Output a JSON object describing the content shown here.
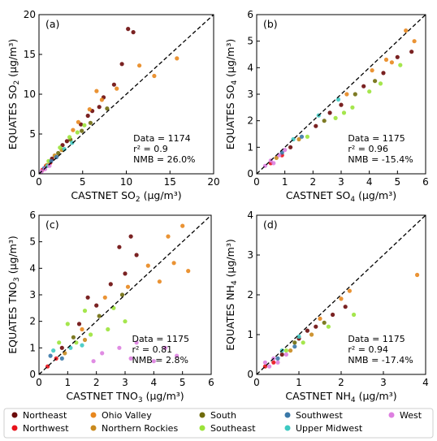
{
  "legend": {
    "regions": [
      {
        "name": "Northeast",
        "color": "#6b0a0a"
      },
      {
        "name": "Northwest",
        "color": "#e8121b"
      },
      {
        "name": "Ohio Valley",
        "color": "#e8871e"
      },
      {
        "name": "Northern Rockies",
        "color": "#c98a1e"
      },
      {
        "name": "South",
        "color": "#6f6b0c"
      },
      {
        "name": "Southeast",
        "color": "#9be33a"
      },
      {
        "name": "Southwest",
        "color": "#3a78a8"
      },
      {
        "name": "Upper Midwest",
        "color": "#3ec9c2"
      },
      {
        "name": "West",
        "color": "#dd7fe0"
      }
    ]
  },
  "chart_data": [
    {
      "type": "scatter",
      "panel": "(a)",
      "xlabel": "CASTNET SO",
      "xsub": "2",
      "ylabel": "EQUATES SO",
      "ysub": "2",
      "unit": "(μg/m³)",
      "xlim": [
        0,
        20
      ],
      "ylim": [
        0,
        20
      ],
      "xticks": [
        "0",
        "5",
        "10",
        "15",
        "20"
      ],
      "yticks": [
        "0",
        "5",
        "10",
        "15",
        "20"
      ],
      "stats": [
        "Data = 1174",
        "r² = 0.9",
        "NMB = 26.0%"
      ],
      "one_to_one_line": true,
      "series": [
        {
          "name": "Northeast",
          "points": [
            [
              1.5,
              1.9
            ],
            [
              3.2,
              4.1
            ],
            [
              4.8,
              6.2
            ],
            [
              6.1,
              7.9
            ],
            [
              7.4,
              9.6
            ],
            [
              8.6,
              11.2
            ],
            [
              9.5,
              13.8
            ],
            [
              10.2,
              18.2
            ],
            [
              10.8,
              17.8
            ],
            [
              5.6,
              7.3
            ],
            [
              2.7,
              3.6
            ],
            [
              6.9,
              8.4
            ]
          ]
        },
        {
          "name": "Northwest",
          "points": [
            [
              0.4,
              0.5
            ],
            [
              0.8,
              1.0
            ],
            [
              1.3,
              1.4
            ]
          ]
        },
        {
          "name": "Ohio Valley",
          "points": [
            [
              4.5,
              6.5
            ],
            [
              5.8,
              8.1
            ],
            [
              7.2,
              9.3
            ],
            [
              8.9,
              10.7
            ],
            [
              11.5,
              13.6
            ],
            [
              13.2,
              12.3
            ],
            [
              15.8,
              14.5
            ],
            [
              6.6,
              10.4
            ],
            [
              3.9,
              5.5
            ]
          ]
        },
        {
          "name": "Northern Rockies",
          "points": [
            [
              0.9,
              1.1
            ],
            [
              1.8,
              2.3
            ],
            [
              2.6,
              3.0
            ]
          ]
        },
        {
          "name": "South",
          "points": [
            [
              2.2,
              2.6
            ],
            [
              3.6,
              4.3
            ],
            [
              4.9,
              5.4
            ],
            [
              5.9,
              6.4
            ],
            [
              7.8,
              8.2
            ]
          ]
        },
        {
          "name": "Southeast",
          "points": [
            [
              1.1,
              1.6
            ],
            [
              2.4,
              3.3
            ],
            [
              3.5,
              4.6
            ],
            [
              4.4,
              5.2
            ],
            [
              5.2,
              6.1
            ]
          ]
        },
        {
          "name": "Southwest",
          "points": [
            [
              0.6,
              0.7
            ],
            [
              1.4,
              1.6
            ],
            [
              2.0,
              2.1
            ]
          ]
        },
        {
          "name": "Upper Midwest",
          "points": [
            [
              1.0,
              1.0
            ],
            [
              2.9,
              3.1
            ],
            [
              3.8,
              3.9
            ]
          ]
        },
        {
          "name": "West",
          "points": [
            [
              0.3,
              0.3
            ],
            [
              0.7,
              0.6
            ],
            [
              1.2,
              1.0
            ]
          ]
        }
      ]
    },
    {
      "type": "scatter",
      "panel": "(b)",
      "xlabel": "CASTNET SO",
      "xsub": "4",
      "ylabel": "EQUATES SO",
      "ysub": "4",
      "unit": "(μg/m³)",
      "xlim": [
        0,
        6
      ],
      "ylim": [
        0,
        6
      ],
      "xticks": [
        "0",
        "1",
        "2",
        "3",
        "4",
        "5",
        "6"
      ],
      "yticks": [
        "0",
        "1",
        "2",
        "3",
        "4",
        "5",
        "6"
      ],
      "stats": [
        "Data = 1175",
        "r² = 0.96",
        "NMB = -15.4%"
      ],
      "one_to_one_line": true,
      "series": [
        {
          "name": "Northeast",
          "points": [
            [
              1.2,
              1.0
            ],
            [
              2.1,
              1.8
            ],
            [
              3.0,
              2.6
            ],
            [
              3.8,
              3.3
            ],
            [
              4.5,
              3.8
            ],
            [
              5.0,
              4.4
            ],
            [
              5.5,
              4.6
            ],
            [
              2.6,
              2.3
            ]
          ]
        },
        {
          "name": "Northwest",
          "points": [
            [
              0.5,
              0.4
            ],
            [
              0.9,
              0.7
            ]
          ]
        },
        {
          "name": "Ohio Valley",
          "points": [
            [
              3.2,
              3.0
            ],
            [
              4.1,
              3.9
            ],
            [
              4.8,
              4.2
            ],
            [
              5.6,
              5.0
            ],
            [
              5.3,
              5.4
            ],
            [
              4.6,
              4.3
            ]
          ]
        },
        {
          "name": "Northern Rockies",
          "points": [
            [
              0.7,
              0.6
            ],
            [
              1.5,
              1.3
            ]
          ]
        },
        {
          "name": "South",
          "points": [
            [
              2.4,
              2.0
            ],
            [
              3.5,
              3.0
            ],
            [
              4.2,
              3.5
            ]
          ]
        },
        {
          "name": "Southeast",
          "points": [
            [
              1.8,
              1.4
            ],
            [
              2.8,
              2.1
            ],
            [
              3.4,
              2.5
            ],
            [
              4.0,
              3.1
            ],
            [
              4.4,
              3.4
            ],
            [
              5.1,
              4.1
            ],
            [
              3.1,
              2.3
            ]
          ]
        },
        {
          "name": "Southwest",
          "points": [
            [
              0.9,
              0.8
            ],
            [
              1.6,
              1.4
            ]
          ]
        },
        {
          "name": "Upper Midwest",
          "points": [
            [
              1.3,
              1.3
            ],
            [
              2.2,
              2.2
            ],
            [
              2.9,
              2.8
            ]
          ]
        },
        {
          "name": "West",
          "points": [
            [
              0.3,
              0.3
            ],
            [
              0.5,
              0.5
            ],
            [
              0.8,
              0.7
            ],
            [
              1.0,
              0.9
            ],
            [
              0.6,
              0.4
            ]
          ]
        }
      ]
    },
    {
      "type": "scatter",
      "panel": "(c)",
      "xlabel": "CASTNET TNO",
      "xsub": "3",
      "ylabel": "EQUATES TNO",
      "ysub": "3",
      "unit": "(μg/m³)",
      "xlim": [
        0,
        6
      ],
      "ylim": [
        0,
        6
      ],
      "xticks": [
        "0",
        "1",
        "2",
        "3",
        "4",
        "5",
        "6"
      ],
      "yticks": [
        "0",
        "1",
        "2",
        "3",
        "4",
        "5",
        "6"
      ],
      "stats": [
        "Data = 1175",
        "r² = 0.81",
        "NMB = 2.8%"
      ],
      "one_to_one_line": true,
      "series": [
        {
          "name": "Northeast",
          "points": [
            [
              0.8,
              1.0
            ],
            [
              1.4,
              1.9
            ],
            [
              2.0,
              2.6
            ],
            [
              2.5,
              3.4
            ],
            [
              3.0,
              3.8
            ],
            [
              3.4,
              4.5
            ],
            [
              2.8,
              4.8
            ],
            [
              1.7,
              2.9
            ],
            [
              3.2,
              5.2
            ]
          ]
        },
        {
          "name": "Northwest",
          "points": [
            [
              0.3,
              0.3
            ],
            [
              0.6,
              0.6
            ]
          ]
        },
        {
          "name": "Ohio Valley",
          "points": [
            [
              1.5,
              1.7
            ],
            [
              2.3,
              2.9
            ],
            [
              3.1,
              3.3
            ],
            [
              3.8,
              4.1
            ],
            [
              4.5,
              5.2
            ],
            [
              5.0,
              5.6
            ],
            [
              4.7,
              4.2
            ],
            [
              5.2,
              3.9
            ],
            [
              4.2,
              3.5
            ]
          ]
        },
        {
          "name": "Northern Rockies",
          "points": [
            [
              0.9,
              0.8
            ],
            [
              1.6,
              1.3
            ]
          ]
        },
        {
          "name": "South",
          "points": [
            [
              1.2,
              1.4
            ],
            [
              2.1,
              2.2
            ],
            [
              2.9,
              3.0
            ]
          ]
        },
        {
          "name": "Southeast",
          "points": [
            [
              0.7,
              1.2
            ],
            [
              1.3,
              1.2
            ],
            [
              1.8,
              1.5
            ],
            [
              2.4,
              1.7
            ],
            [
              3.0,
              2.0
            ],
            [
              1.0,
              1.9
            ],
            [
              1.6,
              2.4
            ],
            [
              2.6,
              2.5
            ]
          ]
        },
        {
          "name": "Southwest",
          "points": [
            [
              0.4,
              0.7
            ],
            [
              0.8,
              0.6
            ]
          ]
        },
        {
          "name": "Upper Midwest",
          "points": [
            [
              0.5,
              0.9
            ],
            [
              1.1,
              1.0
            ],
            [
              1.5,
              1.1
            ]
          ]
        },
        {
          "name": "West",
          "points": [
            [
              2.2,
              0.8
            ],
            [
              2.8,
              1.0
            ],
            [
              3.4,
              1.2
            ],
            [
              4.0,
              0.5
            ],
            [
              4.4,
              1.0
            ],
            [
              4.8,
              0.7
            ],
            [
              3.2,
              0.6
            ],
            [
              1.9,
              0.5
            ]
          ]
        }
      ]
    },
    {
      "type": "scatter",
      "panel": "(d)",
      "xlabel": "CASTNET NH",
      "xsub": "4",
      "ylabel": "EQUATES NH",
      "ysub": "4",
      "unit": "(μg/m³)",
      "xlim": [
        0,
        4
      ],
      "ylim": [
        0,
        4
      ],
      "xticks": [
        "0",
        "1",
        "2",
        "3",
        "4"
      ],
      "yticks": [
        "0",
        "1",
        "2",
        "3",
        "4"
      ],
      "stats": [
        "Data = 1175",
        "r² = 0.94",
        "NMB = -17.4%"
      ],
      "one_to_one_line": true,
      "series": [
        {
          "name": "Northeast",
          "points": [
            [
              0.6,
              0.5
            ],
            [
              1.0,
              0.9
            ],
            [
              1.4,
              1.2
            ],
            [
              1.8,
              1.5
            ],
            [
              2.1,
              1.7
            ],
            [
              1.2,
              1.1
            ]
          ]
        },
        {
          "name": "Northwest",
          "points": [
            [
              0.2,
              0.2
            ],
            [
              0.4,
              0.3
            ]
          ]
        },
        {
          "name": "Ohio Valley",
          "points": [
            [
              1.5,
              1.4
            ],
            [
              2.0,
              1.9
            ],
            [
              2.2,
              2.1
            ],
            [
              3.8,
              2.5
            ]
          ]
        },
        {
          "name": "Northern Rockies",
          "points": [
            [
              0.8,
              0.6
            ],
            [
              1.3,
              1.0
            ]
          ]
        },
        {
          "name": "South",
          "points": [
            [
              0.9,
              0.8
            ],
            [
              1.6,
              1.3
            ]
          ]
        },
        {
          "name": "Southeast",
          "points": [
            [
              0.7,
              0.6
            ],
            [
              1.1,
              0.8
            ],
            [
              1.7,
              1.2
            ],
            [
              2.3,
              1.5
            ]
          ]
        },
        {
          "name": "Southwest",
          "points": [
            [
              0.5,
              0.4
            ],
            [
              0.9,
              0.7
            ]
          ]
        },
        {
          "name": "Upper Midwest",
          "points": [
            [
              0.6,
              0.6
            ],
            [
              1.0,
              0.95
            ]
          ]
        },
        {
          "name": "West",
          "points": [
            [
              0.2,
              0.3
            ],
            [
              0.4,
              0.4
            ],
            [
              0.5,
              0.3
            ],
            [
              0.7,
              0.5
            ],
            [
              0.3,
              0.2
            ]
          ]
        }
      ]
    }
  ]
}
